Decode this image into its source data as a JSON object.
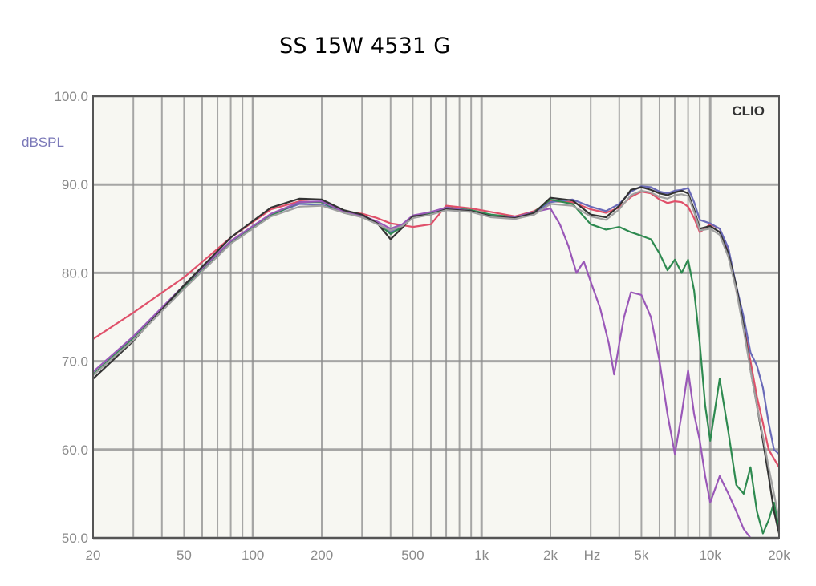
{
  "title": "SS 15W 4531 G",
  "chart_data": {
    "type": "line",
    "title": "SS 15W 4531 G",
    "brand_label": "CLIO",
    "ylabel": "dBSPL",
    "xlabel": "Hz",
    "x_scale": "log",
    "xlim": [
      20,
      20000
    ],
    "ylim": [
      50,
      100
    ],
    "grid": true,
    "y_ticks": [
      {
        "value": 50,
        "label": "50.0"
      },
      {
        "value": 60,
        "label": "60.0"
      },
      {
        "value": 70,
        "label": "70.0"
      },
      {
        "value": 80,
        "label": "80.0"
      },
      {
        "value": 90,
        "label": "90.0"
      },
      {
        "value": 100,
        "label": "100.0"
      }
    ],
    "x_ticks": [
      {
        "value": 20,
        "label": "20"
      },
      {
        "value": 50,
        "label": "50"
      },
      {
        "value": 100,
        "label": "100"
      },
      {
        "value": 200,
        "label": "200"
      },
      {
        "value": 500,
        "label": "500"
      },
      {
        "value": 1000,
        "label": "1k"
      },
      {
        "value": 2000,
        "label": "2k"
      },
      {
        "value": 5000,
        "label": "5k"
      },
      {
        "value": 10000,
        "label": "10k"
      },
      {
        "value": 20000,
        "label": "20k"
      }
    ],
    "colors": {
      "plot_bg": "#f7f7f2",
      "grid": "#8c8c8c",
      "axis": "#555555"
    },
    "series": [
      {
        "color": "#e0506a",
        "points": [
          [
            20,
            72.5
          ],
          [
            30,
            75.5
          ],
          [
            50,
            79.5
          ],
          [
            80,
            84
          ],
          [
            120,
            87.2
          ],
          [
            160,
            88.1
          ],
          [
            200,
            88
          ],
          [
            250,
            86.9
          ],
          [
            300,
            86.7
          ],
          [
            350,
            86.2
          ],
          [
            400,
            85.6
          ],
          [
            450,
            85.4
          ],
          [
            500,
            85.2
          ],
          [
            600,
            85.5
          ],
          [
            700,
            87.6
          ],
          [
            900,
            87.3
          ],
          [
            1100,
            86.9
          ],
          [
            1400,
            86.4
          ],
          [
            1700,
            87
          ],
          [
            2000,
            88.1
          ],
          [
            2500,
            88
          ],
          [
            3000,
            87.2
          ],
          [
            3500,
            86.8
          ],
          [
            4000,
            87.4
          ],
          [
            4500,
            88.6
          ],
          [
            5000,
            89.2
          ],
          [
            5500,
            89
          ],
          [
            6000,
            88.3
          ],
          [
            6500,
            87.9
          ],
          [
            7000,
            88.1
          ],
          [
            7500,
            88
          ],
          [
            8000,
            87.5
          ],
          [
            8500,
            86.2
          ],
          [
            9000,
            84.6
          ],
          [
            10000,
            85.5
          ],
          [
            11000,
            85
          ],
          [
            12000,
            82.5
          ],
          [
            13000,
            78
          ],
          [
            14000,
            74
          ],
          [
            15000,
            70
          ],
          [
            16000,
            66
          ],
          [
            17000,
            63
          ],
          [
            18000,
            60
          ],
          [
            20000,
            58
          ]
        ]
      },
      {
        "color": "#6a6ab8",
        "points": [
          [
            20,
            68.5
          ],
          [
            30,
            72.5
          ],
          [
            50,
            78.5
          ],
          [
            80,
            83.5
          ],
          [
            120,
            86.6
          ],
          [
            160,
            87.8
          ],
          [
            200,
            87.7
          ],
          [
            250,
            86.9
          ],
          [
            300,
            86.4
          ],
          [
            350,
            85.6
          ],
          [
            400,
            84.6
          ],
          [
            450,
            85.4
          ],
          [
            500,
            86.5
          ],
          [
            600,
            86.8
          ],
          [
            700,
            87.3
          ],
          [
            900,
            87
          ],
          [
            1100,
            86.5
          ],
          [
            1400,
            86.2
          ],
          [
            1700,
            86.8
          ],
          [
            2000,
            88
          ],
          [
            2500,
            88.3
          ],
          [
            3000,
            87.5
          ],
          [
            3500,
            87
          ],
          [
            4000,
            87.8
          ],
          [
            4500,
            89.2
          ],
          [
            5000,
            89.8
          ],
          [
            5500,
            89.7
          ],
          [
            6000,
            89.2
          ],
          [
            6500,
            89
          ],
          [
            7000,
            89.3
          ],
          [
            7500,
            89.4
          ],
          [
            8000,
            89.6
          ],
          [
            8500,
            88
          ],
          [
            9000,
            86
          ],
          [
            10000,
            85.6
          ],
          [
            11000,
            85
          ],
          [
            12000,
            82.8
          ],
          [
            13000,
            78.5
          ],
          [
            14000,
            75
          ],
          [
            15000,
            71
          ],
          [
            16000,
            69.5
          ],
          [
            17000,
            67
          ],
          [
            18000,
            63
          ],
          [
            19000,
            60
          ],
          [
            20000,
            59.5
          ]
        ]
      },
      {
        "color": "#2e8a50",
        "points": [
          [
            20,
            68.5
          ],
          [
            30,
            72.6
          ],
          [
            50,
            78.4
          ],
          [
            80,
            83.4
          ],
          [
            120,
            86.5
          ],
          [
            160,
            88
          ],
          [
            200,
            88
          ],
          [
            250,
            86.8
          ],
          [
            300,
            86.4
          ],
          [
            350,
            85.6
          ],
          [
            400,
            84.4
          ],
          [
            450,
            85.2
          ],
          [
            500,
            86.4
          ],
          [
            600,
            86.8
          ],
          [
            700,
            87.4
          ],
          [
            900,
            87.1
          ],
          [
            1100,
            86.6
          ],
          [
            1400,
            86.3
          ],
          [
            1700,
            86.9
          ],
          [
            2000,
            88.3
          ],
          [
            2500,
            87.8
          ],
          [
            3000,
            85.5
          ],
          [
            3500,
            84.9
          ],
          [
            4000,
            85.2
          ],
          [
            4500,
            84.6
          ],
          [
            5000,
            84.2
          ],
          [
            5500,
            83.8
          ],
          [
            6000,
            82.2
          ],
          [
            6500,
            80.3
          ],
          [
            7000,
            81.5
          ],
          [
            7500,
            80
          ],
          [
            8000,
            81.5
          ],
          [
            8500,
            78
          ],
          [
            9000,
            72
          ],
          [
            9500,
            65
          ],
          [
            10000,
            61
          ],
          [
            11000,
            68
          ],
          [
            12000,
            62
          ],
          [
            13000,
            56
          ],
          [
            14000,
            55
          ],
          [
            15000,
            58
          ],
          [
            16000,
            53
          ],
          [
            17000,
            50.5
          ],
          [
            18000,
            52
          ],
          [
            19000,
            54
          ],
          [
            20000,
            51
          ]
        ]
      },
      {
        "color": "#9a58b8",
        "points": [
          [
            20,
            68.8
          ],
          [
            30,
            72.8
          ],
          [
            50,
            78.6
          ],
          [
            80,
            83.6
          ],
          [
            120,
            86.7
          ],
          [
            160,
            88
          ],
          [
            200,
            88.1
          ],
          [
            250,
            86.9
          ],
          [
            300,
            86.5
          ],
          [
            350,
            85.8
          ],
          [
            400,
            85
          ],
          [
            450,
            85.5
          ],
          [
            500,
            86.5
          ],
          [
            600,
            86.9
          ],
          [
            700,
            87.4
          ],
          [
            900,
            87
          ],
          [
            1100,
            86.4
          ],
          [
            1400,
            86.3
          ],
          [
            1700,
            86.9
          ],
          [
            2000,
            87.3
          ],
          [
            2200,
            85.5
          ],
          [
            2400,
            83
          ],
          [
            2600,
            80
          ],
          [
            2800,
            81.3
          ],
          [
            3000,
            79
          ],
          [
            3300,
            76
          ],
          [
            3600,
            72
          ],
          [
            3800,
            68.5
          ],
          [
            4000,
            72
          ],
          [
            4200,
            75
          ],
          [
            4500,
            77.8
          ],
          [
            5000,
            77.5
          ],
          [
            5500,
            75
          ],
          [
            6000,
            70
          ],
          [
            6500,
            64
          ],
          [
            7000,
            59.5
          ],
          [
            7500,
            64
          ],
          [
            8000,
            69
          ],
          [
            8500,
            64
          ],
          [
            9000,
            61
          ],
          [
            9500,
            57
          ],
          [
            10000,
            54
          ],
          [
            11000,
            57
          ],
          [
            12000,
            55
          ],
          [
            13000,
            53
          ],
          [
            14000,
            51
          ],
          [
            15000,
            50
          ]
        ]
      },
      {
        "color": "#333333",
        "points": [
          [
            20,
            68
          ],
          [
            30,
            72.3
          ],
          [
            50,
            78.6
          ],
          [
            80,
            84
          ],
          [
            120,
            87.4
          ],
          [
            160,
            88.4
          ],
          [
            200,
            88.3
          ],
          [
            250,
            87.1
          ],
          [
            300,
            86.6
          ],
          [
            350,
            85.6
          ],
          [
            400,
            83.8
          ],
          [
            450,
            85.1
          ],
          [
            500,
            86.4
          ],
          [
            600,
            86.6
          ],
          [
            700,
            87.2
          ],
          [
            900,
            87
          ],
          [
            1100,
            86.4
          ],
          [
            1400,
            86.2
          ],
          [
            1700,
            86.8
          ],
          [
            2000,
            88.5
          ],
          [
            2500,
            88.2
          ],
          [
            3000,
            86.6
          ],
          [
            3500,
            86.3
          ],
          [
            4000,
            87.6
          ],
          [
            4500,
            89.4
          ],
          [
            5000,
            89.7
          ],
          [
            5500,
            89.4
          ],
          [
            6000,
            89
          ],
          [
            6500,
            88.8
          ],
          [
            7000,
            89.1
          ],
          [
            7500,
            89.3
          ],
          [
            8000,
            89
          ],
          [
            8500,
            87.2
          ],
          [
            9000,
            85
          ],
          [
            10000,
            85.3
          ],
          [
            11000,
            84.6
          ],
          [
            12000,
            82.2
          ],
          [
            13000,
            78.5
          ],
          [
            14000,
            74
          ],
          [
            15000,
            69
          ],
          [
            16000,
            65
          ],
          [
            17000,
            61
          ],
          [
            18000,
            57
          ],
          [
            19000,
            53
          ],
          [
            20000,
            50.5
          ]
        ]
      },
      {
        "color": "#a0a0a0",
        "points": [
          [
            20,
            68.4
          ],
          [
            30,
            72.4
          ],
          [
            50,
            78.2
          ],
          [
            80,
            83.3
          ],
          [
            120,
            86.4
          ],
          [
            160,
            87.5
          ],
          [
            200,
            87.6
          ],
          [
            250,
            86.8
          ],
          [
            300,
            86.3
          ],
          [
            350,
            85.5
          ],
          [
            400,
            84.8
          ],
          [
            450,
            85.3
          ],
          [
            500,
            86.2
          ],
          [
            600,
            86.6
          ],
          [
            700,
            87.1
          ],
          [
            900,
            86.9
          ],
          [
            1100,
            86.3
          ],
          [
            1400,
            86.1
          ],
          [
            1700,
            86.6
          ],
          [
            2000,
            87.8
          ],
          [
            2500,
            87.6
          ],
          [
            3000,
            86.4
          ],
          [
            3500,
            86
          ],
          [
            4000,
            87.2
          ],
          [
            4500,
            88.8
          ],
          [
            5000,
            89.3
          ],
          [
            5500,
            89.1
          ],
          [
            6000,
            88.6
          ],
          [
            6500,
            88.4
          ],
          [
            7000,
            88.8
          ],
          [
            7500,
            88.9
          ],
          [
            8000,
            88.7
          ],
          [
            8500,
            86.9
          ],
          [
            9000,
            84.8
          ],
          [
            10000,
            85
          ],
          [
            11000,
            84.3
          ],
          [
            12000,
            81.8
          ],
          [
            13000,
            78
          ],
          [
            14000,
            73.5
          ],
          [
            15000,
            69
          ],
          [
            16000,
            65
          ],
          [
            17000,
            61.5
          ],
          [
            18000,
            58
          ],
          [
            19000,
            55
          ],
          [
            20000,
            52
          ]
        ]
      }
    ]
  }
}
